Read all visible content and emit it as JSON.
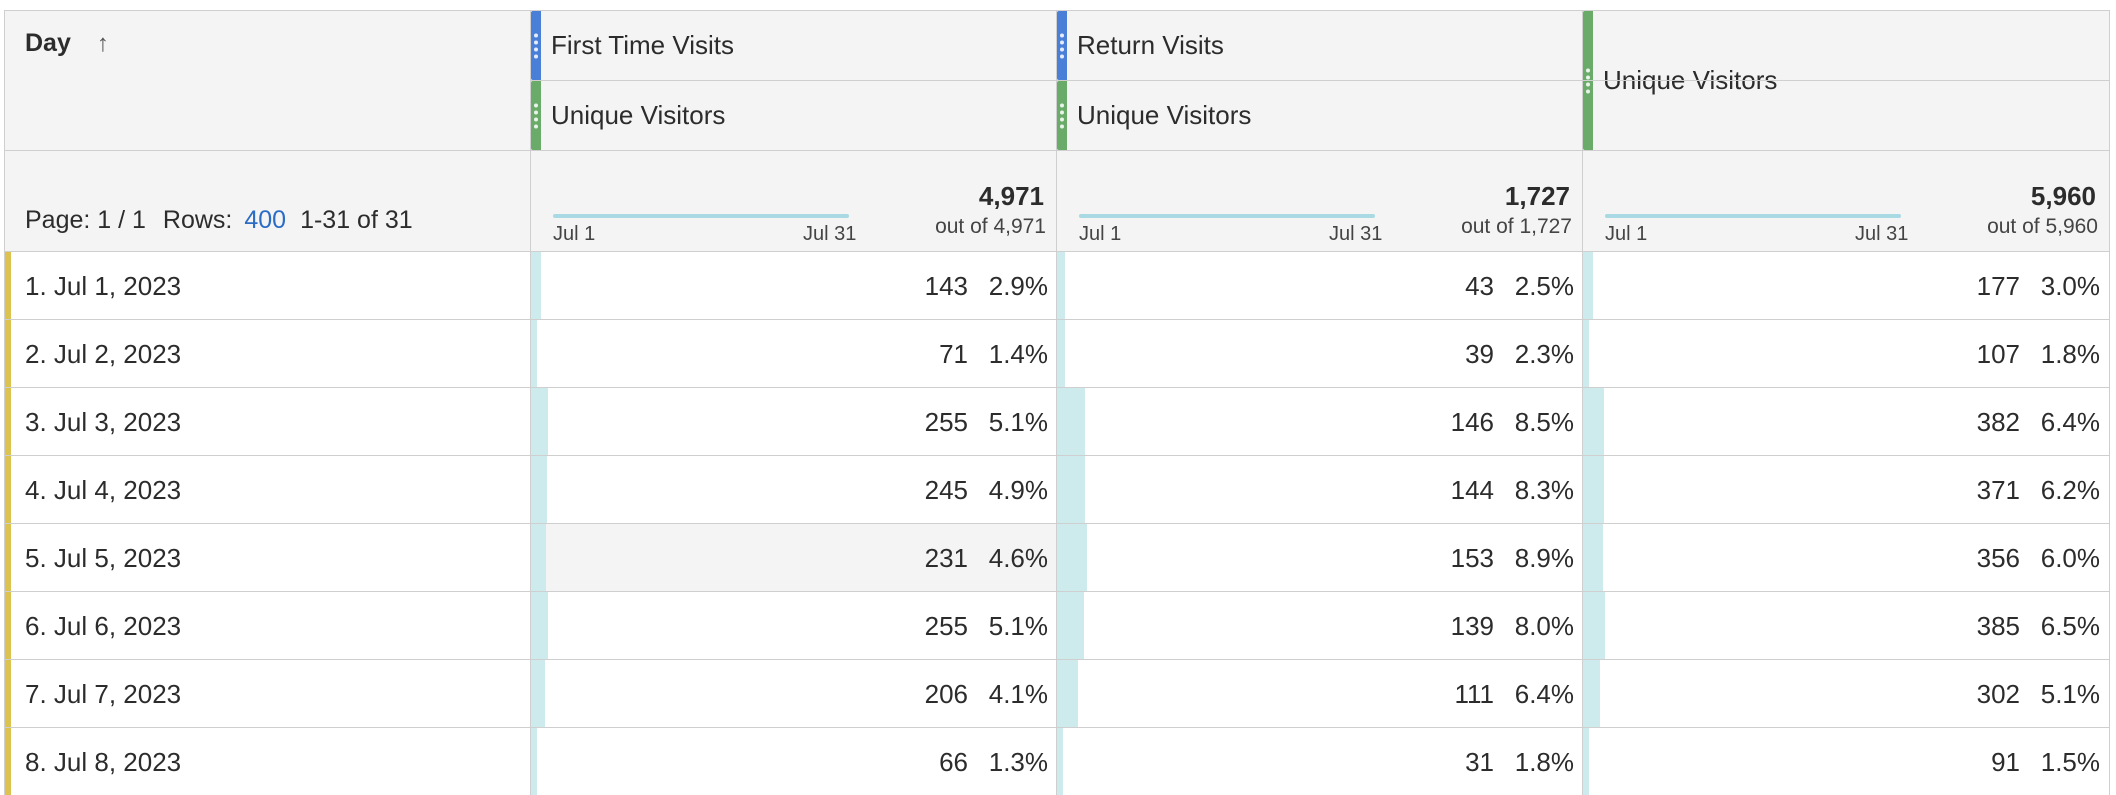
{
  "columns": [
    {
      "segment": "First Time Visits",
      "metric": "Unique Visitors",
      "total": "4,971",
      "out_of": "out of 4,971",
      "spark_start": "Jul 1",
      "spark_end": "Jul 31",
      "max_value": 4971
    },
    {
      "segment": "Return Visits",
      "metric": "Unique Visitors",
      "total": "1,727",
      "out_of": "out of 1,727",
      "spark_start": "Jul 1",
      "spark_end": "Jul 31",
      "max_value": 1727
    },
    {
      "segment": "",
      "metric": "Unique Visitors",
      "total": "5,960",
      "out_of": "out of 5,960",
      "spark_start": "Jul 1",
      "spark_end": "Jul 31",
      "max_value": 5960
    }
  ],
  "dimension": {
    "title": "Day",
    "sort_icon": "arrow-up-icon",
    "page_label": "Page: 1 / 1",
    "rows_label": "Rows:",
    "rows_value": "400",
    "range_label": "1-31 of 31"
  },
  "rows": [
    {
      "label": "1.  Jul 1, 2023",
      "cells": [
        {
          "v": "143",
          "p": "2.9%",
          "frac": 0.029
        },
        {
          "v": "43",
          "p": "2.5%",
          "frac": 0.025
        },
        {
          "v": "177",
          "p": "3.0%",
          "frac": 0.03
        }
      ]
    },
    {
      "label": "2.  Jul 2, 2023",
      "cells": [
        {
          "v": "71",
          "p": "1.4%",
          "frac": 0.014
        },
        {
          "v": "39",
          "p": "2.3%",
          "frac": 0.023
        },
        {
          "v": "107",
          "p": "1.8%",
          "frac": 0.018
        }
      ]
    },
    {
      "label": "3.  Jul 3, 2023",
      "cells": [
        {
          "v": "255",
          "p": "5.1%",
          "frac": 0.051
        },
        {
          "v": "146",
          "p": "8.5%",
          "frac": 0.085
        },
        {
          "v": "382",
          "p": "6.4%",
          "frac": 0.064
        }
      ]
    },
    {
      "label": "4.  Jul 4, 2023",
      "cells": [
        {
          "v": "245",
          "p": "4.9%",
          "frac": 0.049
        },
        {
          "v": "144",
          "p": "8.3%",
          "frac": 0.083
        },
        {
          "v": "371",
          "p": "6.2%",
          "frac": 0.062
        }
      ]
    },
    {
      "label": "5.  Jul 5, 2023",
      "cells": [
        {
          "v": "231",
          "p": "4.6%",
          "frac": 0.046
        },
        {
          "v": "153",
          "p": "8.9%",
          "frac": 0.089
        },
        {
          "v": "356",
          "p": "6.0%",
          "frac": 0.06
        }
      ],
      "highlighted": true
    },
    {
      "label": "6.  Jul 6, 2023",
      "cells": [
        {
          "v": "255",
          "p": "5.1%",
          "frac": 0.051
        },
        {
          "v": "139",
          "p": "8.0%",
          "frac": 0.08
        },
        {
          "v": "385",
          "p": "6.5%",
          "frac": 0.065
        }
      ]
    },
    {
      "label": "7.  Jul 7, 2023",
      "cells": [
        {
          "v": "206",
          "p": "4.1%",
          "frac": 0.041
        },
        {
          "v": "111",
          "p": "6.4%",
          "frac": 0.064
        },
        {
          "v": "302",
          "p": "5.1%",
          "frac": 0.051
        }
      ]
    },
    {
      "label": "8.  Jul 8, 2023",
      "cells": [
        {
          "v": "66",
          "p": "1.3%",
          "frac": 0.013
        },
        {
          "v": "31",
          "p": "1.8%",
          "frac": 0.018
        },
        {
          "v": "91",
          "p": "1.5%",
          "frac": 0.015
        }
      ]
    }
  ],
  "colors": {
    "segment_blue": "#4a7fd8",
    "metric_green": "#6aab6a",
    "bar_fill": "#cdeaec",
    "row_marker": "#dcc24e",
    "link_blue": "#2b6cc4"
  }
}
